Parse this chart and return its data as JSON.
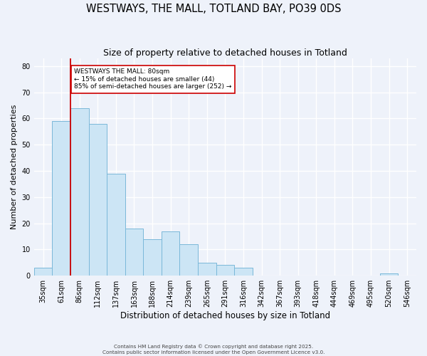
{
  "title": "WESTWAYS, THE MALL, TOTLAND BAY, PO39 0DS",
  "subtitle": "Size of property relative to detached houses in Totland",
  "xlabel": "Distribution of detached houses by size in Totland",
  "ylabel": "Number of detached properties",
  "bar_labels": [
    "35sqm",
    "61sqm",
    "86sqm",
    "112sqm",
    "137sqm",
    "163sqm",
    "188sqm",
    "214sqm",
    "239sqm",
    "265sqm",
    "291sqm",
    "316sqm",
    "342sqm",
    "367sqm",
    "393sqm",
    "418sqm",
    "444sqm",
    "469sqm",
    "495sqm",
    "520sqm",
    "546sqm"
  ],
  "bar_values": [
    3,
    59,
    64,
    58,
    39,
    18,
    14,
    17,
    12,
    5,
    4,
    3,
    0,
    0,
    0,
    0,
    0,
    0,
    0,
    1,
    0
  ],
  "bar_color": "#cce5f5",
  "bar_edge_color": "#7ab8d9",
  "background_color": "#eef2fa",
  "grid_color": "#ffffff",
  "red_line_x": 1.5,
  "red_line_color": "#cc0000",
  "annotation_text": "WESTWAYS THE MALL: 80sqm\n← 15% of detached houses are smaller (44)\n85% of semi-detached houses are larger (252) →",
  "annotation_box_color": "#ffffff",
  "annotation_box_edge_color": "#cc0000",
  "ylim": [
    0,
    83
  ],
  "yticks": [
    0,
    10,
    20,
    30,
    40,
    50,
    60,
    70,
    80
  ],
  "footer_line1": "Contains HM Land Registry data © Crown copyright and database right 2025.",
  "footer_line2": "Contains public sector information licensed under the Open Government Licence v3.0.",
  "title_fontsize": 10.5,
  "subtitle_fontsize": 9,
  "tick_fontsize": 7,
  "ylabel_fontsize": 8,
  "xlabel_fontsize": 8.5,
  "annotation_fontsize": 6.5
}
